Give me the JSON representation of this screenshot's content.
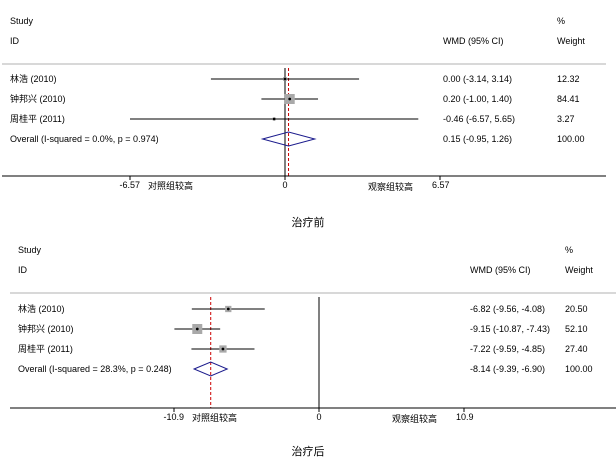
{
  "chart_data": [
    {
      "type": "forest",
      "caption": "治疗前",
      "header": {
        "study_label_1": "Study",
        "study_label_2": "ID",
        "effect_label": "WMD (95% CI)",
        "weight_label_1": "%",
        "weight_label_2": "Weight"
      },
      "studies": [
        {
          "name": "林浩 (2010)",
          "est": 0.0,
          "lo": -3.14,
          "hi": 3.14,
          "ci_text": "0.00 (-3.14, 3.14)",
          "weight": 12.32,
          "weight_text": "12.32"
        },
        {
          "name": "钟邦兴 (2010)",
          "est": 0.2,
          "lo": -1.0,
          "hi": 1.4,
          "ci_text": "0.20 (-1.00, 1.40)",
          "weight": 84.41,
          "weight_text": "84.41"
        },
        {
          "name": "周桂平 (2011)",
          "est": -0.46,
          "lo": -6.57,
          "hi": 5.65,
          "ci_text": "-0.46 (-6.57, 5.65)",
          "weight": 3.27,
          "weight_text": "3.27"
        }
      ],
      "overall": {
        "label": "Overall  (I-squared = 0.0%, p = 0.974)",
        "est": 0.15,
        "lo": -0.95,
        "hi": 1.26,
        "ci_text": "0.15 (-0.95, 1.26)",
        "weight_text": "100.00"
      },
      "axis": {
        "min": -6.57,
        "max": 6.57,
        "null": 0,
        "ticks": [
          {
            "value": -6.57,
            "label": "-6.57"
          },
          {
            "value": 0,
            "label": "0"
          },
          {
            "value": 6.57,
            "label": "6.57"
          }
        ],
        "left_label": "对照组较高",
        "right_label": "观察组较高"
      }
    },
    {
      "type": "forest",
      "caption": "治疗后",
      "header": {
        "study_label_1": "Study",
        "study_label_2": "ID",
        "effect_label": "WMD (95% CI)",
        "weight_label_1": "%",
        "weight_label_2": "Weight"
      },
      "studies": [
        {
          "name": "林浩 (2010)",
          "est": -6.82,
          "lo": -9.56,
          "hi": -4.08,
          "ci_text": "-6.82 (-9.56, -4.08)",
          "weight": 20.5,
          "weight_text": "20.50"
        },
        {
          "name": "钟邦兴 (2010)",
          "est": -9.15,
          "lo": -10.87,
          "hi": -7.43,
          "ci_text": "-9.15 (-10.87, -7.43)",
          "weight": 52.1,
          "weight_text": "52.10"
        },
        {
          "name": "周桂平 (2011)",
          "est": -7.22,
          "lo": -9.59,
          "hi": -4.85,
          "ci_text": "-7.22 (-9.59, -4.85)",
          "weight": 27.4,
          "weight_text": "27.40"
        }
      ],
      "overall": {
        "label": "Overall  (I-squared = 28.3%, p = 0.248)",
        "est": -8.14,
        "lo": -9.39,
        "hi": -6.9,
        "ci_text": "-8.14 (-9.39, -6.90)",
        "weight_text": "100.00"
      },
      "axis": {
        "min": -10.9,
        "max": 10.9,
        "null": 0,
        "ticks": [
          {
            "value": -10.9,
            "label": "-10.9"
          },
          {
            "value": 0,
            "label": "0"
          },
          {
            "value": 10.9,
            "label": "10.9"
          }
        ],
        "left_label": "对照组较高",
        "right_label": "观察组较高"
      }
    }
  ],
  "colors": {
    "diamond": "#1a1a8c",
    "marker_box": "#a9a9a9",
    "pooled_line": "#cc0000",
    "divider": "#b0b0b0",
    "line": "#000000"
  }
}
